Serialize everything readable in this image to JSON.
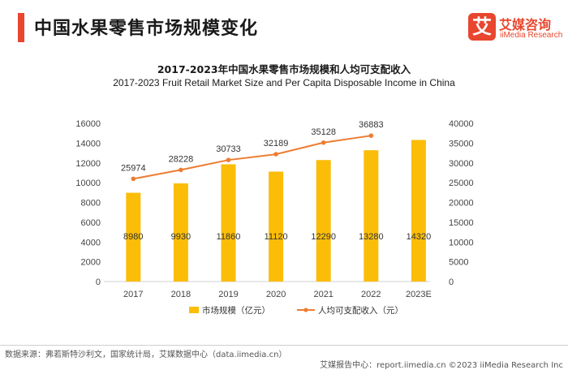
{
  "page": {
    "title": "中国水果零售市场规模变化"
  },
  "logo": {
    "mark": "艾",
    "name_cn": "艾媒咨询",
    "name_en": "iiMedia Research"
  },
  "footer": {
    "source": "数据来源：弗若斯特沙利文，国家统计局，艾媒数据中心（data.iimedia.cn）",
    "right": "艾媒报告中心：report.iimedia.cn  ©2023  iiMedia Research  Inc"
  },
  "colors": {
    "accent": "#e8462e",
    "bar": "#fbbd08",
    "line": "#ed7d31"
  },
  "chart_data": {
    "type": "bar+line",
    "title": "2017-2023年中国水果零售市场规模和人均可支配收入",
    "subtitle": "2017-2023 Fruit Retail Market Size and Per Capita Disposable Income in China",
    "categories": [
      "2017",
      "2018",
      "2019",
      "2020",
      "2021",
      "2022",
      "2023E"
    ],
    "series": [
      {
        "name": "市场规模（亿元）",
        "type": "bar",
        "axis": "left",
        "values": [
          8980,
          9930,
          11860,
          11120,
          12290,
          13280,
          14320
        ]
      },
      {
        "name": "人均可支配收入（元）",
        "type": "line",
        "axis": "right",
        "values": [
          25974,
          28228,
          30733,
          32189,
          35128,
          36883,
          null
        ]
      }
    ],
    "y_left": {
      "min": 0,
      "max": 16000,
      "step": 2000
    },
    "y_right": {
      "min": 0,
      "max": 40000,
      "step": 5000
    },
    "grid": false,
    "legend_position": "bottom"
  }
}
